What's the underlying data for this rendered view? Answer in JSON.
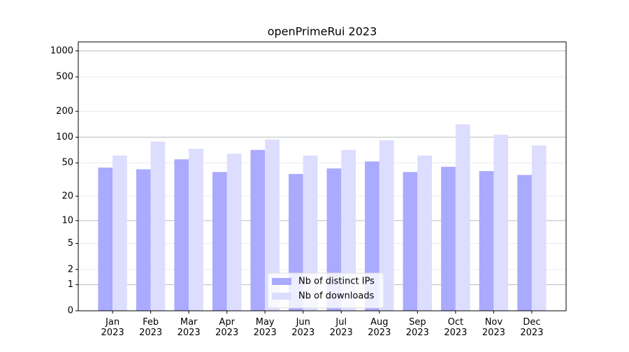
{
  "chart_data": {
    "type": "bar",
    "title": "openPrimeRui 2023",
    "categories": [
      "Jan\n2023",
      "Feb\n2023",
      "Mar\n2023",
      "Apr\n2023",
      "May\n2023",
      "Jun\n2023",
      "Jul\n2023",
      "Aug\n2023",
      "Sep\n2023",
      "Oct\n2023",
      "Nov\n2023",
      "Dec\n2023"
    ],
    "series": [
      {
        "name": "Nb of distinct IPs",
        "color": "#aaaaff",
        "values": [
          44,
          42,
          55,
          39,
          71,
          37,
          43,
          52,
          39,
          45,
          40,
          36
        ]
      },
      {
        "name": "Nb of downloads",
        "color": "#ddddff",
        "values": [
          61,
          89,
          73,
          64,
          94,
          61,
          71,
          92,
          61,
          141,
          107,
          80
        ]
      }
    ],
    "yscale": "log1p",
    "ylim": [
      0,
      1270
    ],
    "yticks": [
      0,
      1,
      2,
      5,
      10,
      20,
      50,
      100,
      200,
      500,
      1000
    ],
    "grid": true,
    "legend": "lower center"
  }
}
